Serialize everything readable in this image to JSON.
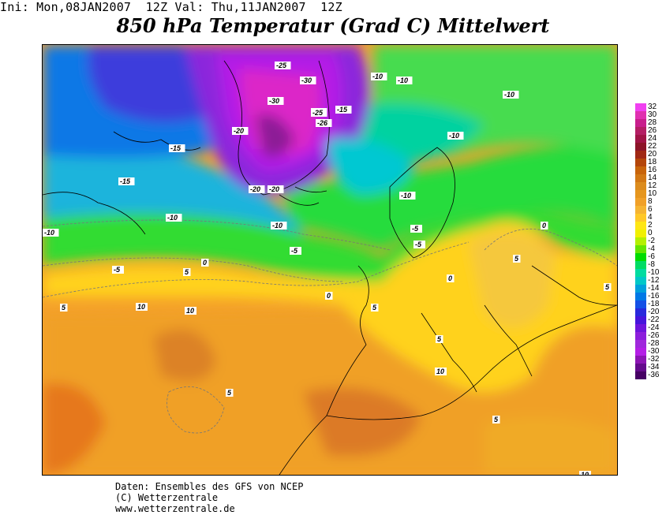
{
  "header": {
    "run_info": "Ini: Mon,08JAN2007  12Z Val: Thu,11JAN2007  12Z",
    "title": "850 hPa Temperatur (Grad C) Mittelwert"
  },
  "legend": {
    "values": [
      "32",
      "30",
      "28",
      "26",
      "24",
      "22",
      "20",
      "18",
      "16",
      "14",
      "12",
      "10",
      "8",
      "6",
      "4",
      "2",
      "0",
      "-2",
      "-4",
      "-6",
      "-8",
      "-10",
      "-12",
      "-14",
      "-16",
      "-18",
      "-20",
      "-22",
      "-24",
      "-26",
      "-28",
      "-30",
      "-32",
      "-34",
      "-36"
    ],
    "colors": [
      "#f040f0",
      "#e030b0",
      "#c81e8c",
      "#b41e64",
      "#a01446",
      "#8c1428",
      "#a02814",
      "#b4460a",
      "#c8640a",
      "#d27814",
      "#dc8c1e",
      "#e6961e",
      "#f0a028",
      "#f5b432",
      "#ffc828",
      "#ffe614",
      "#f0f000",
      "#b4f000",
      "#64e600",
      "#00dc00",
      "#00dc64",
      "#00dca0",
      "#00c8c8",
      "#00a0dc",
      "#0078e6",
      "#1450e6",
      "#2828dc",
      "#4614dc",
      "#6e14dc",
      "#8c1edc",
      "#a028dc",
      "#b41ee6",
      "#8c14b4",
      "#640a8c",
      "#460064"
    ]
  },
  "contour_labels": [
    "-25",
    "-30",
    "-30",
    "-25",
    "-15",
    "-25",
    "-26",
    "-20",
    "-20",
    "-15",
    "-15",
    "-20",
    "-10",
    "-10",
    "-10",
    "-10",
    "-10",
    "-10",
    "-10",
    "-10",
    "-5",
    "-5",
    "-5",
    "-5",
    "0",
    "0",
    "0",
    "0",
    "5",
    "5",
    "5",
    "5",
    "5",
    "5",
    "5",
    "5",
    "10",
    "10",
    "10",
    "10"
  ],
  "footer": {
    "line1": "Daten: Ensembles des GFS von NCEP",
    "line2": "(C) Wetterzentrale",
    "line3": "www.wetterzentrale.de"
  }
}
